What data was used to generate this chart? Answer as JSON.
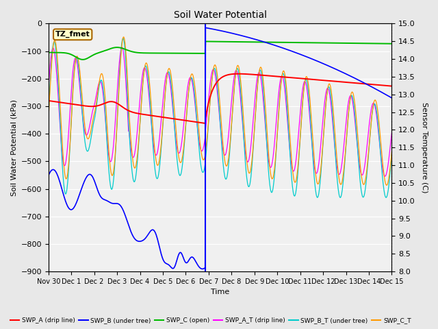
{
  "title": "Soil Water Potential",
  "ylabel_left": "Soil Water Potential (kPa)",
  "ylabel_right": "Sensor Temperature (C)",
  "xlabel": "Time",
  "ylim_left": [
    -900,
    0
  ],
  "ylim_right": [
    8.0,
    15.0
  ],
  "yticks_left": [
    -900,
    -800,
    -700,
    -600,
    -500,
    -400,
    -300,
    -200,
    -100,
    0
  ],
  "yticks_right": [
    8.0,
    8.5,
    9.0,
    9.5,
    10.0,
    10.5,
    11.0,
    11.5,
    12.0,
    12.5,
    13.0,
    13.5,
    14.0,
    14.5,
    15.0
  ],
  "annotation_box": "TZ_fmet",
  "background_color": "#e8e8e8",
  "plot_bg_color": "#f0f0f0",
  "grid_color": "#ffffff",
  "colors": {
    "SWP_A": "#ff0000",
    "SWP_B": "#0000ff",
    "SWP_C": "#00bb00",
    "SWP_A_T": "#ff00ff",
    "SWP_B_T": "#00cccc",
    "SWP_C_T": "#ff9900"
  },
  "legend_labels": [
    "SWP_A (drip line)",
    "SWP_B (under tree)",
    "SWP_C (open)",
    "SWP_A_T (drip line)",
    "SWP_B_T (under tree)",
    "SWP_C_T"
  ],
  "xtick_labels": [
    "Nov 30",
    "Dec 1",
    "Dec 2",
    "Dec 3",
    "Dec 4",
    "Dec 5",
    "Dec 6",
    "Dec 7",
    "Dec 8",
    "Dec 9",
    "Dec 10",
    "Dec 11",
    "Dec 12",
    "Dec 13",
    "Dec 14",
    "Dec 15"
  ],
  "vline_x": 6.85,
  "vline_color": "#0000ff"
}
